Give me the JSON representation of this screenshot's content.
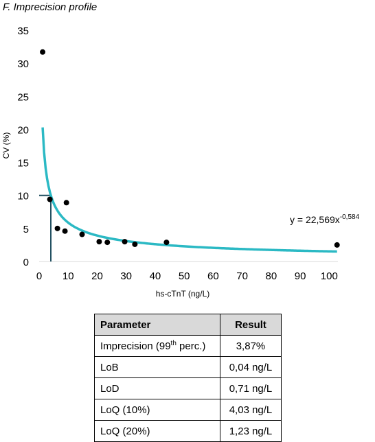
{
  "panel_label": "F. Imprecision profile",
  "chart_data": {
    "type": "scatter",
    "title": "",
    "xlabel": "hs-cTnT (ng/L)",
    "ylabel": "CV (%)",
    "xlim": [
      0,
      103
    ],
    "ylim": [
      0,
      35
    ],
    "xticks": [
      0,
      10,
      20,
      30,
      40,
      50,
      60,
      70,
      80,
      90,
      100
    ],
    "yticks": [
      0,
      5,
      10,
      15,
      20,
      25,
      30,
      35
    ],
    "grid": false,
    "points": [
      {
        "x": 1.2,
        "y": 31.7
      },
      {
        "x": 3.7,
        "y": 9.4
      },
      {
        "x": 6.3,
        "y": 5.0
      },
      {
        "x": 8.9,
        "y": 4.6
      },
      {
        "x": 9.4,
        "y": 8.9
      },
      {
        "x": 14.8,
        "y": 4.1
      },
      {
        "x": 20.7,
        "y": 3.0
      },
      {
        "x": 23.5,
        "y": 2.9
      },
      {
        "x": 29.5,
        "y": 3.0
      },
      {
        "x": 33.0,
        "y": 2.6
      },
      {
        "x": 43.9,
        "y": 2.9
      },
      {
        "x": 102.7,
        "y": 2.5
      }
    ],
    "trendline": {
      "equation_text": "y = 22,569x",
      "equation_exponent_text": "-0,584",
      "coefficient": 22.569,
      "exponent": -0.584,
      "x_range": [
        1.2,
        102.7
      ],
      "color": "#2bb9c4"
    },
    "reference_lines": {
      "x": 4.03,
      "y": 10,
      "color": "#1f4e5f"
    },
    "marker_color": "#000000"
  },
  "table": {
    "headers": {
      "parameter": "Parameter",
      "result": "Result"
    },
    "rows": [
      {
        "parameter": "Imprecision (99",
        "parameter_sup": "th",
        "parameter_suffix": " perc.)",
        "result": "3,87%"
      },
      {
        "parameter": "LoB",
        "parameter_sup": "",
        "parameter_suffix": "",
        "result": "0,04 ng/L"
      },
      {
        "parameter": "LoD",
        "parameter_sup": "",
        "parameter_suffix": "",
        "result": "0,71 ng/L"
      },
      {
        "parameter": "LoQ (10%)",
        "parameter_sup": "",
        "parameter_suffix": "",
        "result": "4,03 ng/L"
      },
      {
        "parameter": "LoQ (20%)",
        "parameter_sup": "",
        "parameter_suffix": "",
        "result": "1,23 ng/L"
      }
    ]
  }
}
